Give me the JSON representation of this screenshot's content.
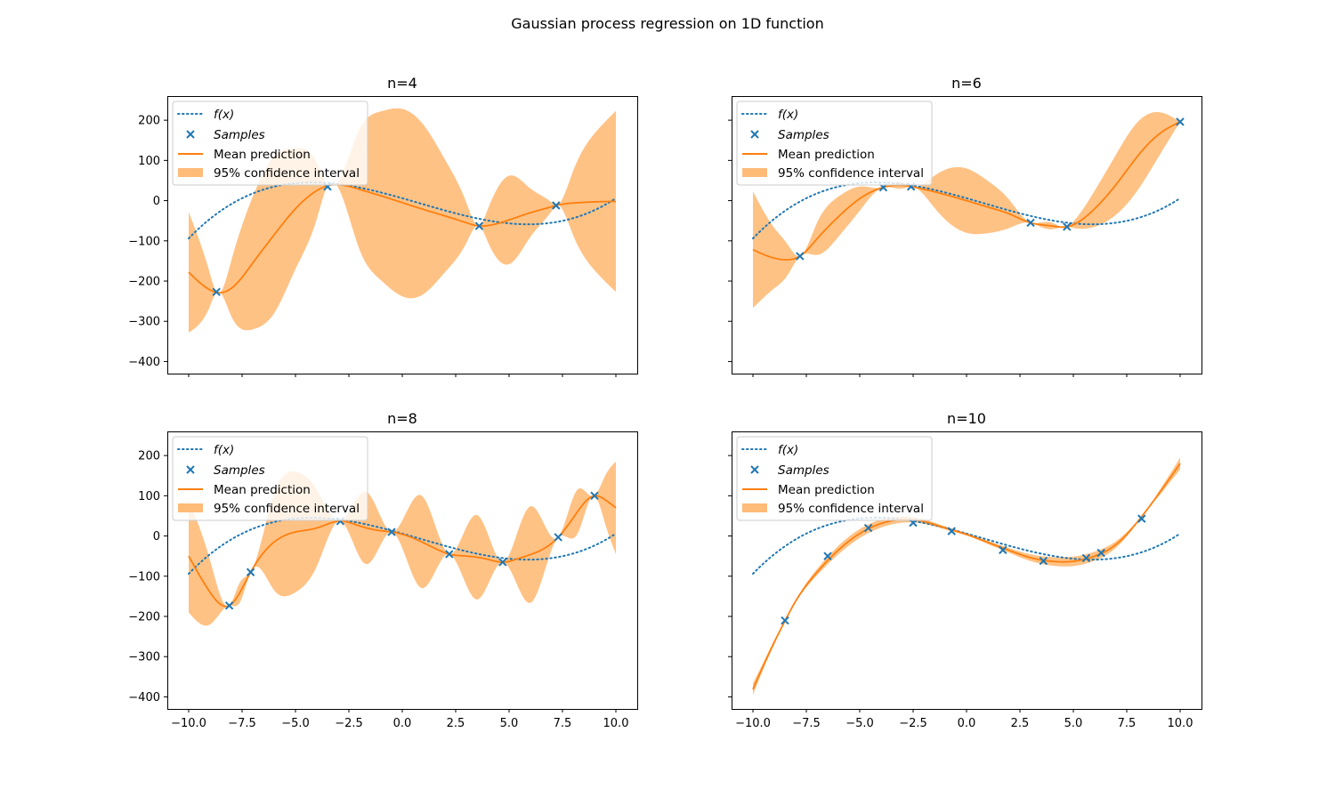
{
  "figure_title": "Gaussian process regression on 1D function",
  "colors": {
    "f": "#1f77b4",
    "samples": "#1f77b4",
    "mean": "#ff7f0e",
    "band": "#ffbb78"
  },
  "legend": {
    "f_label": "f(x)",
    "samples_label": "Samples",
    "mean_label": "Mean prediction",
    "ci_label": "95% confidence interval",
    "placement": "upper-left"
  },
  "axes_shared": {
    "xlim": [
      -11,
      11
    ],
    "ylim": [
      -430,
      260
    ],
    "xticks": [
      -10,
      -7.5,
      -5,
      -2.5,
      0,
      2.5,
      5,
      7.5,
      10
    ],
    "xtick_labels": [
      "−10.0",
      "−7.5",
      "−5.0",
      "−2.5",
      "0.0",
      "2.5",
      "5.0",
      "7.5",
      "10.0"
    ],
    "yticks": [
      -400,
      -300,
      -200,
      -100,
      0,
      100,
      200
    ],
    "ytick_labels": [
      "−400",
      "−300",
      "−200",
      "−100",
      "0",
      "100",
      "200"
    ],
    "true_function": "0.2*x^3 - 0.5*x^2 - 15*x + 6"
  },
  "chart_data": [
    {
      "type": "line",
      "title": "n=4",
      "samples": {
        "x": [
          -8.7,
          -3.5,
          3.6,
          7.2
        ],
        "y": [
          -227,
          35,
          -63,
          -12
        ]
      },
      "mean": {
        "x": [
          -10,
          -9,
          -8.7,
          -8,
          -7,
          -6,
          -5,
          -4,
          -3.5,
          -2,
          -1,
          0,
          1,
          2,
          3,
          3.6,
          4,
          5,
          6,
          7,
          7.2,
          8,
          9,
          10
        ],
        "y": [
          -178,
          -222,
          -228,
          -218,
          -155,
          -85,
          -20,
          25,
          37,
          28,
          12,
          -5,
          -22,
          -38,
          -55,
          -63,
          -62,
          -48,
          -30,
          -15,
          -12,
          -6,
          -3,
          -2
        ]
      },
      "ci_half_width": {
        "x": [
          -10,
          -9,
          -8.7,
          -8,
          -7,
          -6,
          -5,
          -4,
          -3.5,
          -2,
          -1,
          0,
          1,
          2,
          3,
          3.6,
          4,
          5,
          6,
          7,
          7.2,
          8,
          9,
          10
        ],
        "y": [
          150,
          40,
          0,
          70,
          165,
          195,
          150,
          70,
          0,
          150,
          210,
          233,
          210,
          140,
          50,
          0,
          40,
          110,
          60,
          10,
          0,
          80,
          170,
          225
        ]
      }
    },
    {
      "type": "line",
      "title": "n=6",
      "samples": {
        "x": [
          -7.8,
          -3.9,
          -2.6,
          3.0,
          4.7,
          10.0
        ],
        "y": [
          -138,
          33,
          35,
          -55,
          -65,
          196
        ]
      },
      "mean": {
        "x": [
          -10,
          -9,
          -8.4,
          -7.8,
          -7,
          -6,
          -5,
          -3.9,
          -3,
          -2.6,
          -1,
          0,
          1,
          2,
          3,
          3.5,
          4,
          4.7,
          5,
          6,
          7,
          8,
          9,
          10
        ],
        "y": [
          -122,
          -143,
          -147,
          -138,
          -95,
          -40,
          5,
          33,
          38,
          35,
          15,
          0,
          -16,
          -33,
          -55,
          -60,
          -63,
          -65,
          -60,
          -20,
          40,
          110,
          165,
          196
        ]
      },
      "ci_half_width": {
        "x": [
          -10,
          -9,
          -8.4,
          -7.8,
          -7,
          -6,
          -5,
          -3.9,
          -3,
          -2.6,
          -1.5,
          0,
          1,
          2,
          3,
          3.5,
          4,
          4.7,
          5,
          6,
          7,
          8,
          9,
          10
        ],
        "y": [
          145,
          75,
          40,
          0,
          40,
          50,
          30,
          0,
          8,
          0,
          40,
          80,
          65,
          35,
          0,
          6,
          8,
          0,
          8,
          45,
          75,
          85,
          55,
          0
        ]
      }
    },
    {
      "type": "line",
      "title": "n=8",
      "samples": {
        "x": [
          -8.1,
          -7.1,
          -2.9,
          -0.5,
          2.2,
          4.7,
          7.3,
          9.0
        ],
        "y": [
          -173,
          -90,
          37,
          10,
          -45,
          -65,
          -3,
          100
        ]
      },
      "mean": {
        "x": [
          -10,
          -9,
          -8.1,
          -7.6,
          -7.1,
          -6,
          -5,
          -4,
          -2.9,
          -2,
          -1,
          -0.5,
          0.5,
          1.5,
          2.2,
          3,
          4,
          4.7,
          5.5,
          6.5,
          7.3,
          8,
          9,
          9.5,
          10
        ],
        "y": [
          -50,
          -140,
          -173,
          -140,
          -90,
          -15,
          10,
          20,
          37,
          25,
          13,
          10,
          -5,
          -30,
          -45,
          -50,
          -58,
          -65,
          -55,
          -35,
          -3,
          45,
          100,
          90,
          70
        ]
      },
      "ci_half_width": {
        "x": [
          -10,
          -9,
          -8.1,
          -7.6,
          -7.1,
          -6,
          -5,
          -4,
          -2.9,
          -1.7,
          -0.5,
          0.9,
          2.2,
          3.5,
          4.7,
          6.0,
          7.3,
          8.2,
          9.0,
          9.5,
          10
        ],
        "y": [
          140,
          80,
          0,
          25,
          0,
          120,
          150,
          95,
          0,
          90,
          0,
          115,
          0,
          105,
          0,
          120,
          0,
          55,
          0,
          60,
          115
        ]
      }
    },
    {
      "type": "line",
      "title": "n=10",
      "samples": {
        "x": [
          -8.5,
          -6.5,
          -4.6,
          -2.5,
          -0.7,
          1.7,
          3.6,
          5.6,
          6.3,
          8.2
        ],
        "y": [
          -210,
          -50,
          20,
          33,
          12,
          -35,
          -62,
          -55,
          -42,
          43
        ]
      },
      "mean": {
        "x": [
          -10,
          -9.5,
          -9,
          -8.5,
          -8,
          -7,
          -6,
          -5,
          -4,
          -3,
          -2,
          -1,
          0,
          1,
          2,
          3,
          4,
          5,
          6,
          7,
          8,
          9,
          10
        ],
        "y": [
          -381,
          -321,
          -264,
          -211,
          -162,
          -90,
          -35,
          6,
          31,
          41,
          36,
          20,
          4,
          -16,
          -36,
          -54,
          -63,
          -63,
          -50,
          -21,
          35,
          105,
          180
        ]
      },
      "ci_half_width": {
        "x": [
          -10,
          -9.5,
          -9,
          -8.5,
          -8,
          0,
          8,
          8.5,
          9,
          9.5,
          10
        ],
        "y": [
          15,
          8,
          5,
          0,
          2,
          3,
          2,
          0,
          6,
          10,
          15
        ]
      }
    }
  ]
}
